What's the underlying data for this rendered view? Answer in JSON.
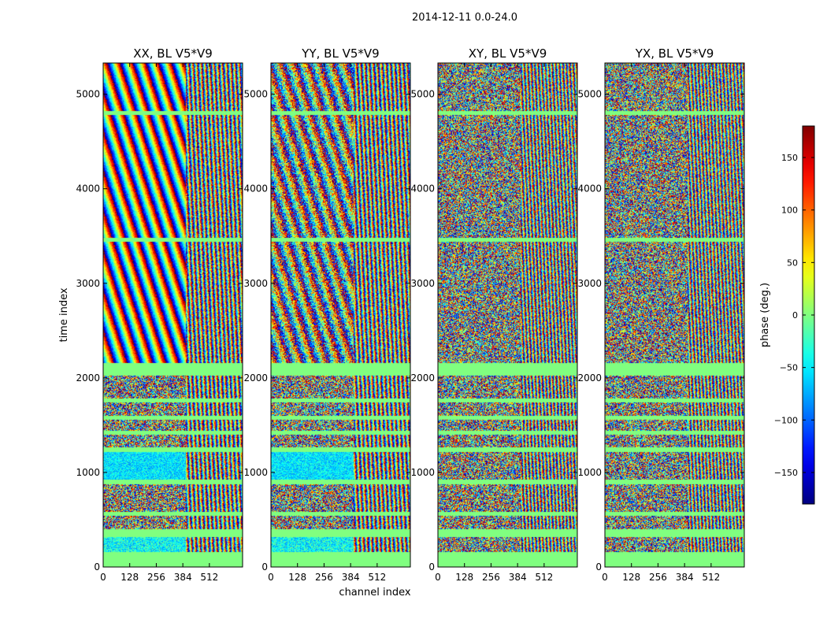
{
  "figure": {
    "suptitle": "2014-12-11 0.0-24.0"
  },
  "chart_data": {
    "type": "heatmap",
    "xlabel": "channel index",
    "ylabel": "time index",
    "xlim": [
      0,
      672
    ],
    "ylim": [
      0,
      5330
    ],
    "xticks": [
      0,
      128,
      256,
      384,
      512
    ],
    "xtick_labels": [
      "0",
      "128",
      "256",
      "384",
      "512"
    ],
    "yticks": [
      0,
      1000,
      2000,
      3000,
      4000,
      5000
    ],
    "ytick_labels": [
      "0",
      "1000",
      "2000",
      "3000",
      "4000",
      "5000"
    ],
    "panels": [
      {
        "title": "XX, BL V5*V9",
        "kind": "parallel"
      },
      {
        "title": "YY, BL V5*V9",
        "kind": "parallel"
      },
      {
        "title": "XY, BL V5*V9",
        "kind": "cross"
      },
      {
        "title": "YX, BL V5*V9",
        "kind": "cross"
      }
    ],
    "flagged_time_ranges": [
      [
        0,
        160
      ],
      [
        2020,
        2160
      ]
    ],
    "flag_lines": [
      340,
      380,
      560,
      900,
      1240,
      1420,
      1580,
      1760,
      3460,
      4800
    ],
    "colorbar": {
      "label": "phase (deg.)",
      "range": [
        -180,
        180
      ],
      "ticks": [
        -150,
        -100,
        -50,
        0,
        50,
        100,
        150
      ],
      "tick_labels": [
        "−150",
        "−100",
        "−50",
        "0",
        "50",
        "100",
        "150"
      ],
      "colormap": "jet"
    }
  }
}
